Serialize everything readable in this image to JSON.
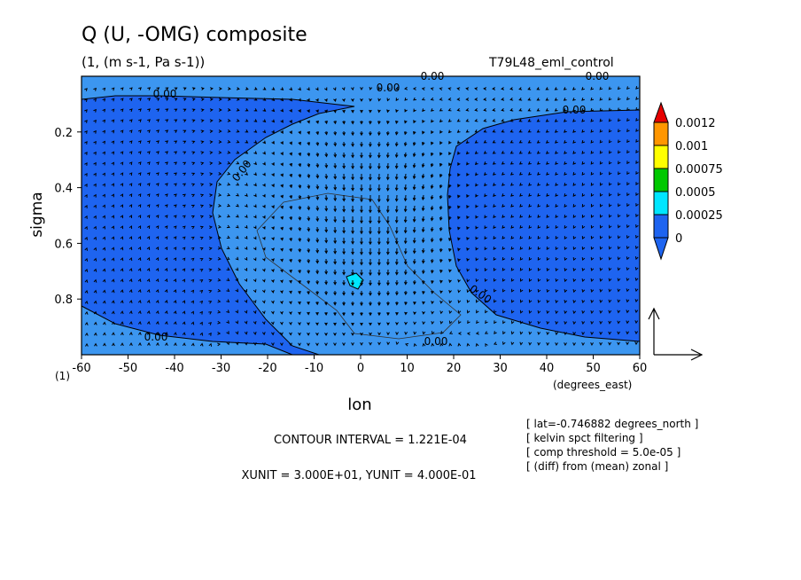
{
  "title": "Q (U, -OMG) composite",
  "subtitle": "(1, (m s-1, Pa s-1))",
  "run_label": "T79L48_eml_control",
  "chart_data": {
    "type": "heatmap",
    "xlabel": "lon",
    "xunits": "(degrees_east)",
    "ylabel": "sigma",
    "yaxis_marker": "(1)",
    "xlim": [
      -60,
      60
    ],
    "ylim": [
      1.0,
      0.0
    ],
    "x_ticks": [
      "-60",
      "-50",
      "-40",
      "-30",
      "-20",
      "-10",
      "0",
      "10",
      "20",
      "30",
      "40",
      "50",
      "60"
    ],
    "y_ticks": [
      "0.2",
      "0.4",
      "0.6",
      "0.8"
    ],
    "contour_label": "0.00",
    "colorbar": {
      "levels": [
        "0",
        "0.00025",
        "0.0005",
        "0.00075",
        "0.001",
        "0.0012"
      ],
      "colors": [
        "#1e64f0",
        "#00e6ff",
        "#00c800",
        "#ffff00",
        "#ff9600",
        "#e60000"
      ],
      "lower_extend_color": "#1e64f0",
      "upper_extend_color": "#e60000"
    },
    "field_colors": {
      "below_zero": "#1e64f0",
      "zero_to_0.00025": "#3c96f0",
      "core": "#00e6ff"
    },
    "vectors": true
  },
  "footer": {
    "contour_interval": "CONTOUR INTERVAL = 1.221E-04",
    "units": "XUNIT = 3.000E+01, YUNIT = 4.000E-01",
    "notes": [
      "[ lat=-0.746882 degrees_north ]",
      "[ kelvin spct filtering ]",
      "[ comp threshold = 5.0e-05 ]",
      "[ (diff) from (mean) zonal ]"
    ]
  }
}
